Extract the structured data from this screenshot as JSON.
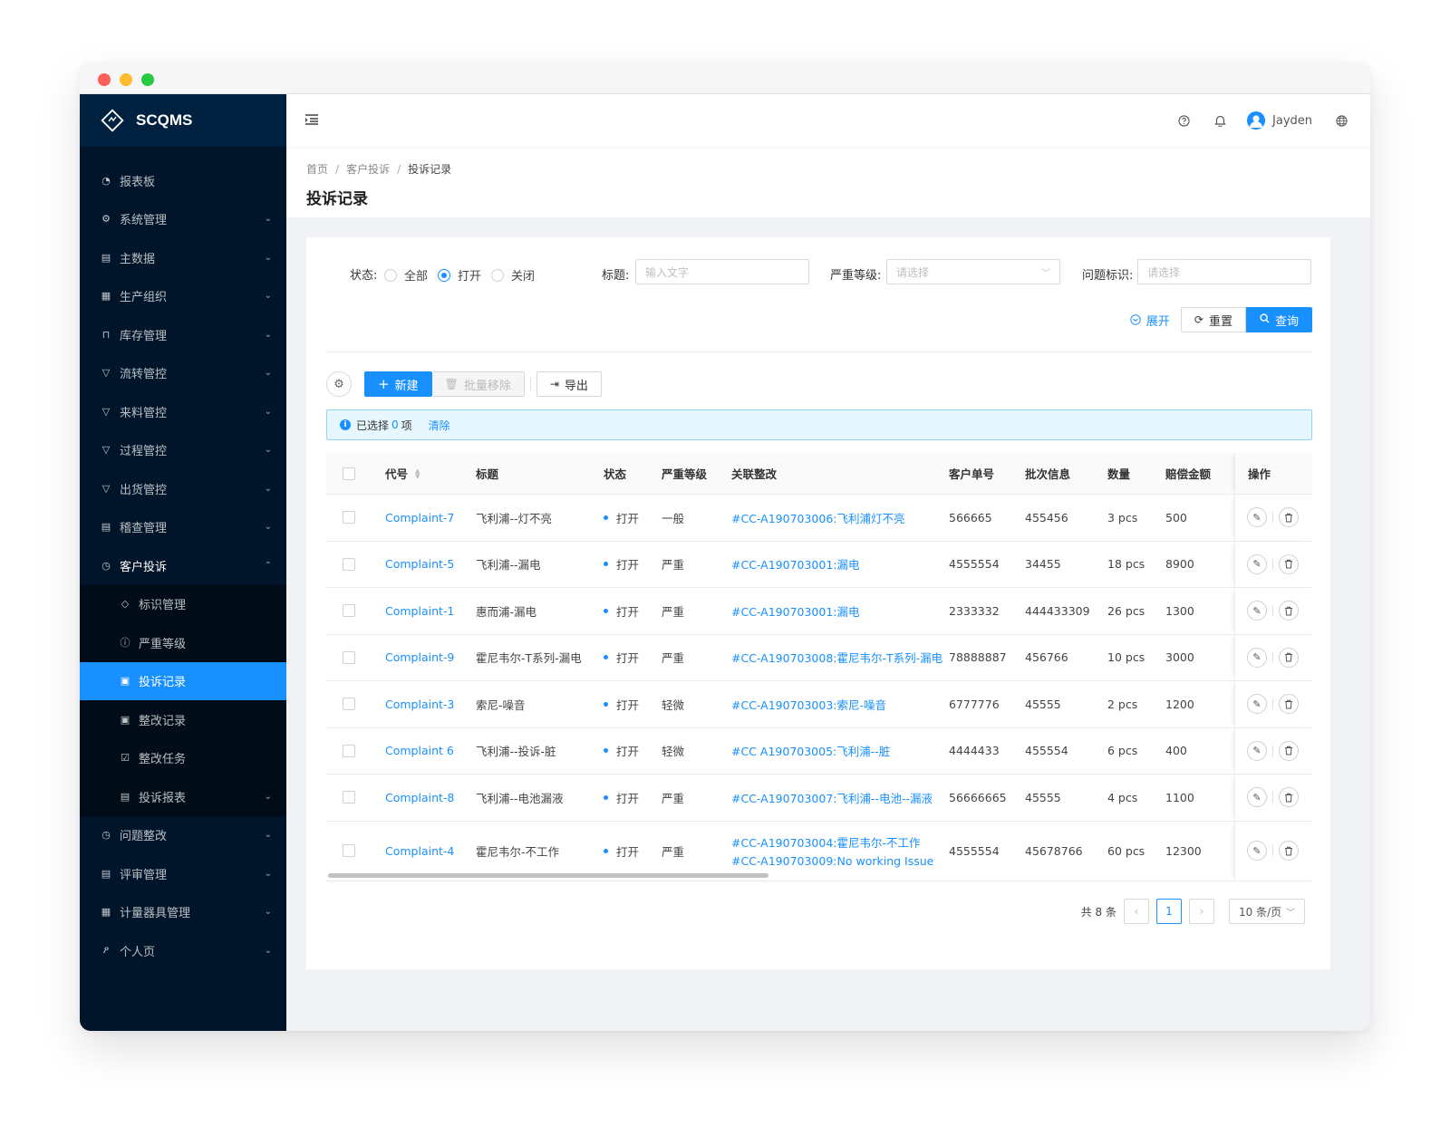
{
  "app": {
    "name": "SCQMS"
  },
  "sidebar": {
    "items": [
      {
        "label": "报表板",
        "icon": "dashboard-icon",
        "glyph": "◔",
        "arrow": false
      },
      {
        "label": "系统管理",
        "icon": "settings-icon",
        "glyph": "⚙",
        "arrow": true
      },
      {
        "label": "主数据",
        "icon": "file-icon",
        "glyph": "▤",
        "arrow": true
      },
      {
        "label": "生产组织",
        "icon": "organization-icon",
        "glyph": "▦",
        "arrow": true
      },
      {
        "label": "库存管理",
        "icon": "lock-icon",
        "glyph": "⊓",
        "arrow": true
      },
      {
        "label": "流转管控",
        "icon": "filter-icon",
        "glyph": "▽",
        "arrow": true
      },
      {
        "label": "来料管控",
        "icon": "filter-icon",
        "glyph": "▽",
        "arrow": true
      },
      {
        "label": "过程管控",
        "icon": "filter-icon",
        "glyph": "▽",
        "arrow": true
      },
      {
        "label": "出货管控",
        "icon": "filter-icon",
        "glyph": "▽",
        "arrow": true
      },
      {
        "label": "稽查管理",
        "icon": "audit-icon",
        "glyph": "▤",
        "arrow": true
      }
    ],
    "open_item": {
      "label": "客户投诉",
      "icon": "customer-complaint-icon",
      "glyph": "◷"
    },
    "submenu": [
      {
        "label": "标识管理",
        "icon": "tag-icon",
        "glyph": "◇",
        "active": false,
        "arrow": false
      },
      {
        "label": "严重等级",
        "icon": "exclamation-circle-icon",
        "glyph": "ⓘ",
        "active": false,
        "arrow": false
      },
      {
        "label": "投诉记录",
        "icon": "record-icon",
        "glyph": "▣",
        "active": true,
        "arrow": false
      },
      {
        "label": "整改记录",
        "icon": "record-icon",
        "glyph": "▣",
        "active": false,
        "arrow": false
      },
      {
        "label": "整改任务",
        "icon": "checkbox-icon",
        "glyph": "☑",
        "active": false,
        "arrow": false
      },
      {
        "label": "投诉报表",
        "icon": "report-icon",
        "glyph": "▤",
        "active": false,
        "arrow": true
      }
    ],
    "items_after": [
      {
        "label": "问题整改",
        "icon": "history-icon",
        "glyph": "◷",
        "arrow": true
      },
      {
        "label": "评审管理",
        "icon": "review-icon",
        "glyph": "▤",
        "arrow": true
      },
      {
        "label": "计量器具管理",
        "icon": "measurement-icon",
        "glyph": "▦",
        "arrow": true
      },
      {
        "label": "个人页",
        "icon": "user-icon",
        "glyph": "ዖ",
        "arrow": true
      }
    ]
  },
  "header": {
    "username": "Jayden"
  },
  "breadcrumb": {
    "home": "首页",
    "parent": "客户投诉",
    "current": "投诉记录"
  },
  "page_title": "投诉记录",
  "filters": {
    "status_label": "状态:",
    "status_options": [
      "全部",
      "打开",
      "关闭"
    ],
    "status_selected": "打开",
    "title_label": "标题:",
    "title_placeholder": "输入文字",
    "severity_label": "严重等级:",
    "severity_placeholder": "请选择",
    "issue_tag_label": "问题标识:",
    "issue_tag_placeholder": "请选择",
    "expand": "展开",
    "reset": "重置",
    "search": "查询"
  },
  "toolbar": {
    "new": "新建",
    "batch_remove": "批量移除",
    "export": "导出"
  },
  "selection": {
    "prefix": "已选择",
    "count": "0",
    "suffix": "项",
    "clear": "清除"
  },
  "table": {
    "columns": [
      "代号",
      "标题",
      "状态",
      "严重等级",
      "关联整改",
      "客户单号",
      "批次信息",
      "数量",
      "赔偿金额",
      "操作"
    ],
    "rows": [
      {
        "code": "Complaint-7",
        "title": "飞利浦--灯不亮",
        "status": "打开",
        "severity": "一般",
        "rect1": "#CC-A190703006:飞利浦灯不亮",
        "rect2": "",
        "customer_no": "566665",
        "batch": "455456",
        "qty": "3 pcs",
        "amount": "500"
      },
      {
        "code": "Complaint-5",
        "title": "飞利浦--漏电",
        "status": "打开",
        "severity": "严重",
        "rect1": "#CC-A190703001:漏电",
        "rect2": "",
        "customer_no": "4555554",
        "batch": "34455",
        "qty": "18 pcs",
        "amount": "8900"
      },
      {
        "code": "Complaint-1",
        "title": "惠而浦-漏电",
        "status": "打开",
        "severity": "严重",
        "rect1": "#CC-A190703001:漏电",
        "rect2": "",
        "customer_no": "2333332",
        "batch": "444433309",
        "qty": "26 pcs",
        "amount": "1300"
      },
      {
        "code": "Complaint-9",
        "title": "霍尼韦尔-T系列-漏电",
        "status": "打开",
        "severity": "严重",
        "rect1": "#CC-A190703008:霍尼韦尔-T系列-漏电",
        "rect2": "",
        "customer_no": "78888887",
        "batch": "456766",
        "qty": "10 pcs",
        "amount": "3000"
      },
      {
        "code": "Complaint-3",
        "title": "索尼-噪音",
        "status": "打开",
        "severity": "轻微",
        "rect1": "#CC-A190703003:索尼-噪音",
        "rect2": "",
        "customer_no": "6777776",
        "batch": "45555",
        "qty": "2 pcs",
        "amount": "1200"
      },
      {
        "code": "Complaint 6",
        "title": "飞利浦--投诉-脏",
        "status": "打开",
        "severity": "轻微",
        "rect1": "#CC A190703005:飞利浦--脏",
        "rect2": "",
        "customer_no": "4444433",
        "batch": "455554",
        "qty": "6 pcs",
        "amount": "400"
      },
      {
        "code": "Complaint-8",
        "title": "飞利浦--电池漏液",
        "status": "打开",
        "severity": "严重",
        "rect1": "#CC-A190703007:飞利浦--电池--漏液",
        "rect2": "",
        "customer_no": "56666665",
        "batch": "45555",
        "qty": "4 pcs",
        "amount": "1100"
      },
      {
        "code": "Complaint-4",
        "title": "霍尼韦尔-不工作",
        "status": "打开",
        "severity": "严重",
        "rect1": "#CC-A190703004:霍尼韦尔-不工作",
        "rect2": "#CC-A190703009:No working Issue",
        "customer_no": "4555554",
        "batch": "45678766",
        "qty": "60 pcs",
        "amount": "12300"
      }
    ]
  },
  "pagination": {
    "total": "共 8 条",
    "current": "1",
    "page_size": "10 条/页"
  },
  "colors": {
    "primary": "#1890ff",
    "sidebar_bg": "#001529",
    "submenu_bg": "#000c17"
  }
}
